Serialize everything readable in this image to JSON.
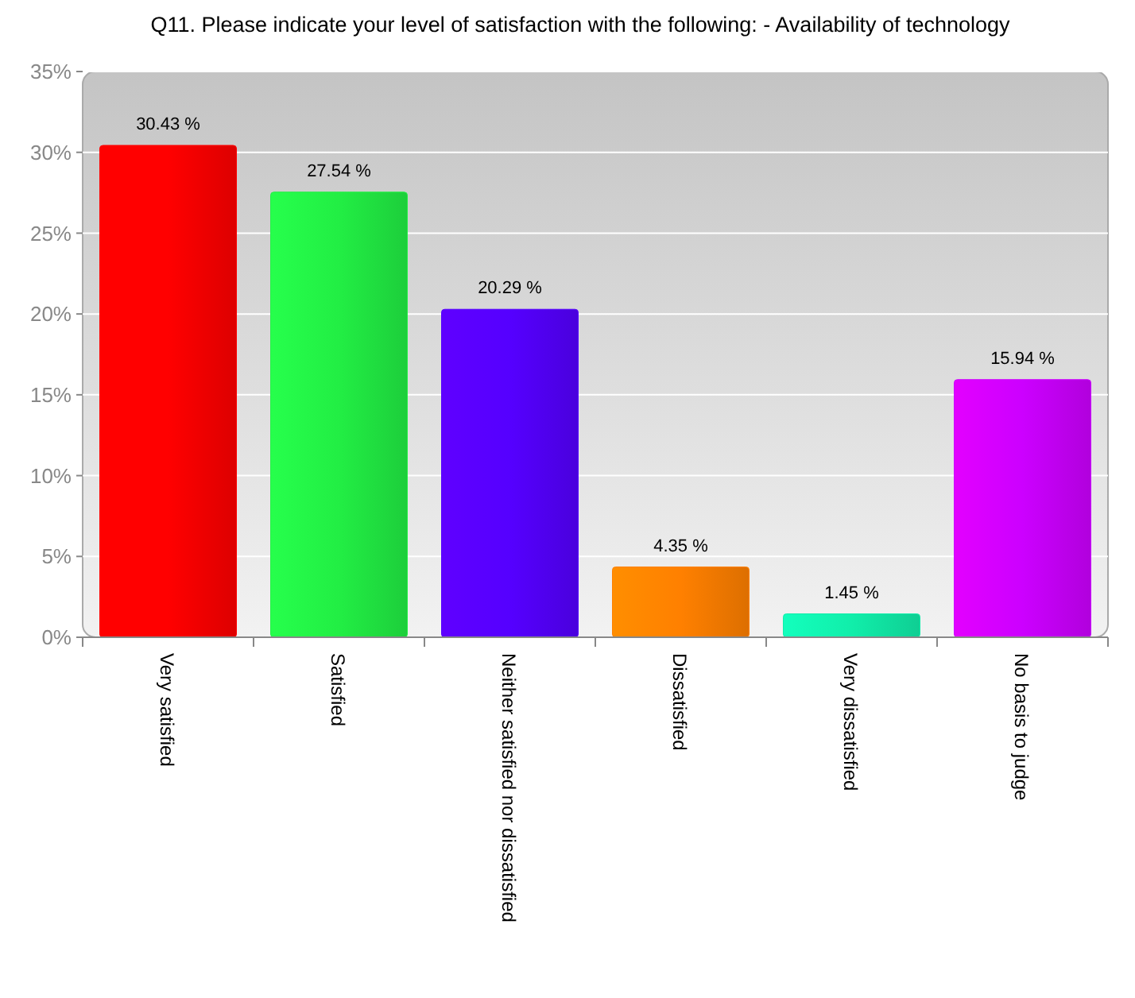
{
  "chart_data": {
    "type": "bar",
    "title": "Q11. Please indicate your level of satisfaction with the following:  - Availability of technology",
    "categories": [
      "Very satisfied",
      "Satisfied",
      "Neither satisfied nor dissatisfied",
      "Dissatisfied",
      "Very dissatisfied",
      "No basis to judge"
    ],
    "values": [
      30.43,
      27.54,
      20.29,
      4.35,
      1.45,
      15.94
    ],
    "value_labels": [
      "30.43 %",
      "27.54 %",
      "20.29 %",
      "4.35 %",
      "1.45 %",
      "15.94 %"
    ],
    "colors": [
      "#ff0000",
      "#22ee44",
      "#5500ff",
      "#ff8000",
      "#11eeaa",
      "#cc00ff"
    ],
    "ylim": [
      0,
      35
    ],
    "yticks": [
      {
        "value": 0,
        "label": "0%"
      },
      {
        "value": 5,
        "label": "5%"
      },
      {
        "value": 10,
        "label": "10%"
      },
      {
        "value": 15,
        "label": "15%"
      },
      {
        "value": 20,
        "label": "20%"
      },
      {
        "value": 25,
        "label": "25%"
      },
      {
        "value": 30,
        "label": "30%"
      },
      {
        "value": 35,
        "label": "35%"
      }
    ],
    "grid": "y"
  }
}
